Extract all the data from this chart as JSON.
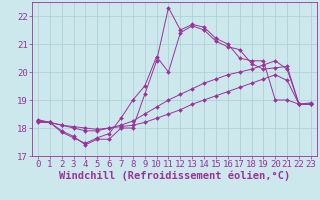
{
  "xlabel": "Windchill (Refroidissement éolien,°C)",
  "background_color": "#cce8ec",
  "grid_color": "#aacdd4",
  "line_color": "#993399",
  "xlim": [
    -0.5,
    23.5
  ],
  "ylim": [
    17.0,
    22.5
  ],
  "xticks": [
    0,
    1,
    2,
    3,
    4,
    5,
    6,
    7,
    8,
    9,
    10,
    11,
    12,
    13,
    14,
    15,
    16,
    17,
    18,
    19,
    20,
    21,
    22,
    23
  ],
  "yticks": [
    17,
    18,
    19,
    20,
    21,
    22
  ],
  "series1_x": [
    0,
    1,
    2,
    3,
    4,
    5,
    6,
    7,
    8,
    9,
    10,
    11,
    12,
    13,
    14,
    15,
    16,
    17,
    18,
    19,
    20,
    21,
    22,
    23
  ],
  "series1_y": [
    18.3,
    18.2,
    17.9,
    17.7,
    17.4,
    17.6,
    17.6,
    18.0,
    18.0,
    19.2,
    20.4,
    22.3,
    21.5,
    21.7,
    21.6,
    21.2,
    21.0,
    20.5,
    20.4,
    20.4,
    19.0,
    19.0,
    18.85,
    18.9
  ],
  "series2_x": [
    0,
    1,
    2,
    3,
    4,
    5,
    6,
    7,
    8,
    9,
    10,
    11,
    12,
    13,
    14,
    15,
    16,
    17,
    18,
    19,
    20,
    21,
    22,
    23
  ],
  "series2_y": [
    18.25,
    18.2,
    17.85,
    17.65,
    17.45,
    17.65,
    17.8,
    18.35,
    19.0,
    19.5,
    20.55,
    20.0,
    21.4,
    21.65,
    21.5,
    21.1,
    20.9,
    20.8,
    20.3,
    20.1,
    20.15,
    20.2,
    18.85,
    18.85
  ],
  "series3_x": [
    0,
    1,
    2,
    3,
    4,
    5,
    6,
    7,
    8,
    9,
    10,
    11,
    12,
    13,
    14,
    15,
    16,
    17,
    18,
    19,
    20,
    21,
    22,
    23
  ],
  "series3_y": [
    18.25,
    18.2,
    18.1,
    18.0,
    17.9,
    17.9,
    18.0,
    18.1,
    18.25,
    18.5,
    18.75,
    19.0,
    19.2,
    19.4,
    19.6,
    19.75,
    19.9,
    20.0,
    20.1,
    20.25,
    20.4,
    20.1,
    18.85,
    18.85
  ],
  "series4_x": [
    0,
    1,
    2,
    3,
    4,
    5,
    6,
    7,
    8,
    9,
    10,
    11,
    12,
    13,
    14,
    15,
    16,
    17,
    18,
    19,
    20,
    21,
    22,
    23
  ],
  "series4_y": [
    18.2,
    18.2,
    18.1,
    18.05,
    18.0,
    17.95,
    18.0,
    18.05,
    18.1,
    18.2,
    18.35,
    18.5,
    18.65,
    18.85,
    19.0,
    19.15,
    19.3,
    19.45,
    19.6,
    19.75,
    19.9,
    19.7,
    18.85,
    18.85
  ],
  "font_color": "#993399",
  "tick_fontsize": 6.5,
  "xlabel_fontsize": 7.5
}
